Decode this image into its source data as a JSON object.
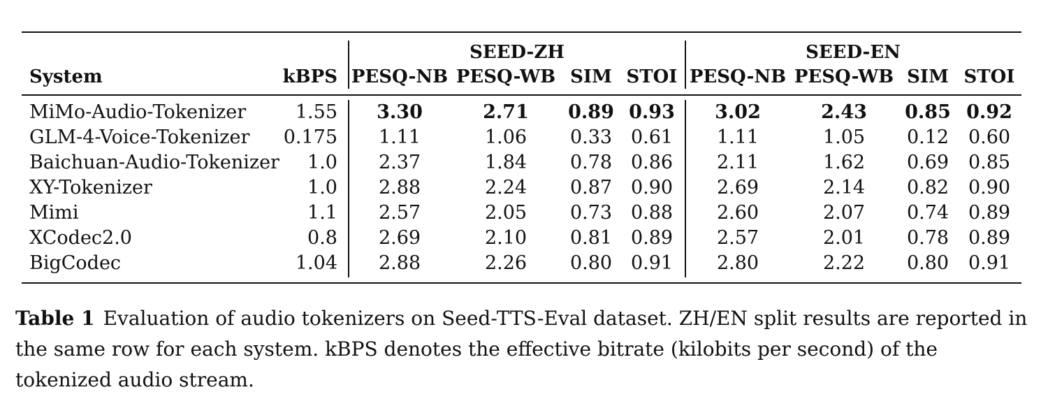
{
  "table": {
    "group_headers": [
      "SEED-ZH",
      "SEED-EN"
    ],
    "columns": [
      "System",
      "kBPS",
      "PESQ-NB",
      "PESQ-WB",
      "SIM",
      "STOI",
      "PESQ-NB",
      "PESQ-WB",
      "SIM",
      "STOI"
    ],
    "rows": [
      {
        "system": "MiMo-Audio-Tokenizer",
        "kbps": "1.55",
        "values": [
          "3.30",
          "2.71",
          "0.89",
          "0.93",
          "3.02",
          "2.43",
          "0.85",
          "0.92"
        ],
        "bold": true
      },
      {
        "system": "GLM-4-Voice-Tokenizer",
        "kbps": "0.175",
        "values": [
          "1.11",
          "1.06",
          "0.33",
          "0.61",
          "1.11",
          "1.05",
          "0.12",
          "0.60"
        ],
        "bold": false
      },
      {
        "system": "Baichuan-Audio-Tokenizer",
        "kbps": "1.0",
        "values": [
          "2.37",
          "1.84",
          "0.78",
          "0.86",
          "2.11",
          "1.62",
          "0.69",
          "0.85"
        ],
        "bold": false
      },
      {
        "system": "XY-Tokenizer",
        "kbps": "1.0",
        "values": [
          "2.88",
          "2.24",
          "0.87",
          "0.90",
          "2.69",
          "2.14",
          "0.82",
          "0.90"
        ],
        "bold": false
      },
      {
        "system": "Mimi",
        "kbps": "1.1",
        "values": [
          "2.57",
          "2.05",
          "0.73",
          "0.88",
          "2.60",
          "2.07",
          "0.74",
          "0.89"
        ],
        "bold": false
      },
      {
        "system": "XCodec2.0",
        "kbps": "0.8",
        "values": [
          "2.69",
          "2.10",
          "0.81",
          "0.89",
          "2.57",
          "2.01",
          "0.78",
          "0.89"
        ],
        "bold": false
      },
      {
        "system": "BigCodec",
        "kbps": "1.04",
        "values": [
          "2.88",
          "2.26",
          "0.80",
          "0.91",
          "2.80",
          "2.22",
          "0.80",
          "0.91"
        ],
        "bold": false
      }
    ]
  },
  "caption": {
    "label": "Table 1",
    "text": "Evaluation of audio tokenizers on Seed-TTS-Eval dataset. ZH/EN split results are reported in the same row for each system. kBPS denotes the effective bitrate (kilobits per second) of the tokenized audio stream."
  }
}
